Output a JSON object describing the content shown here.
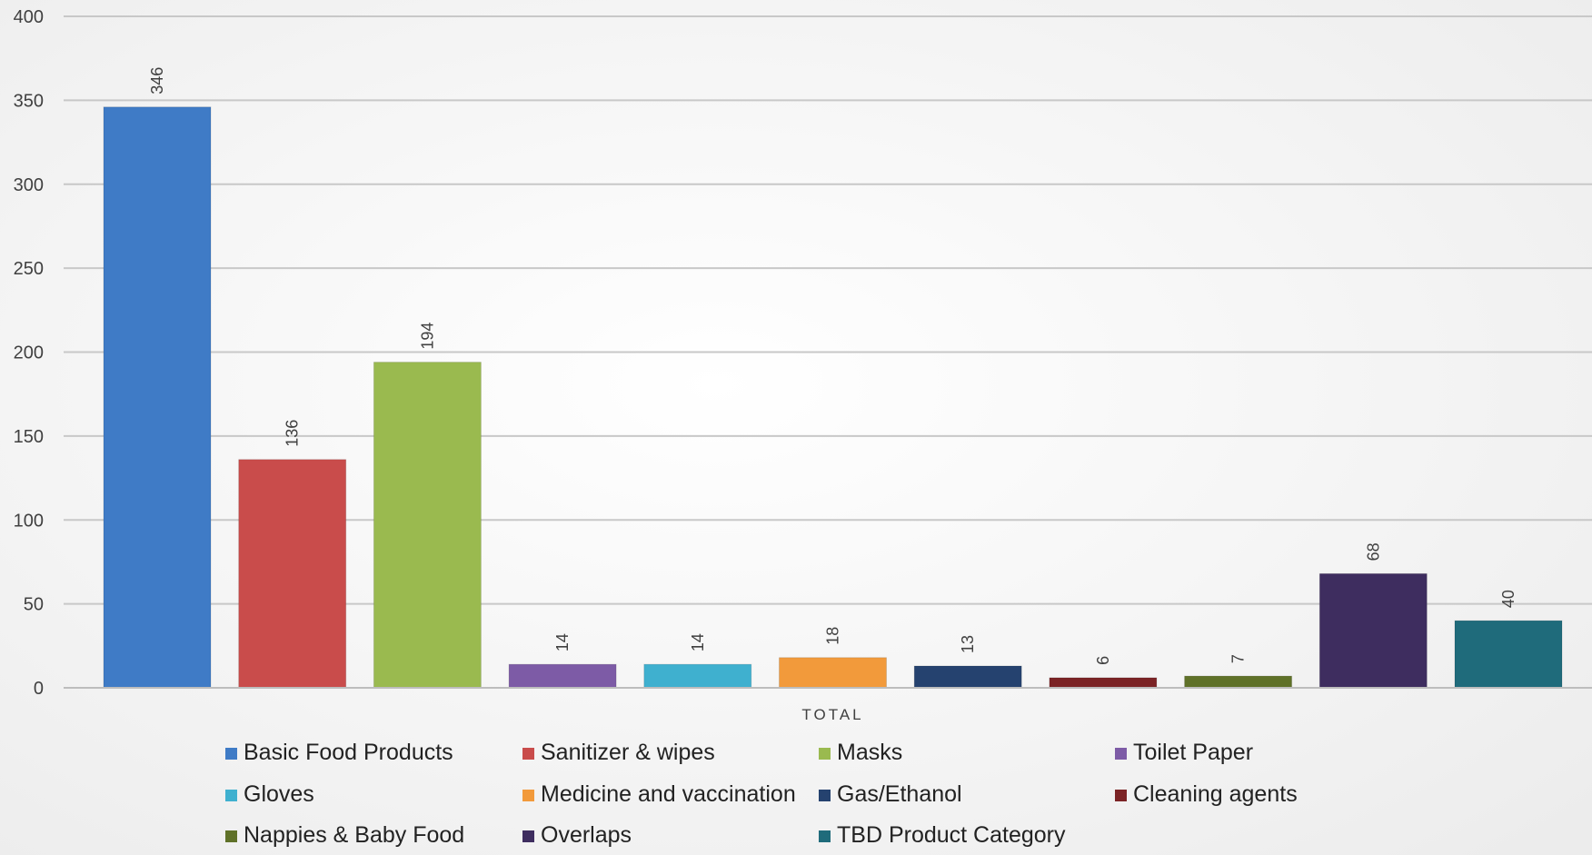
{
  "chart_data": {
    "type": "bar",
    "categories": [
      "TOTAL"
    ],
    "series": [
      {
        "name": "Basic Food Products",
        "values": [
          346
        ],
        "color": "#3f7bc6"
      },
      {
        "name": "Sanitizer & wipes",
        "values": [
          136
        ],
        "color": "#c94c4b"
      },
      {
        "name": "Masks",
        "values": [
          194
        ],
        "color": "#9aba4f"
      },
      {
        "name": "Toilet Paper",
        "values": [
          14
        ],
        "color": "#7d5ba6"
      },
      {
        "name": "Gloves",
        "values": [
          14
        ],
        "color": "#3fb0cf"
      },
      {
        "name": "Medicine and vaccination",
        "values": [
          18
        ],
        "color": "#f29a3b"
      },
      {
        "name": "Gas/Ethanol",
        "values": [
          13
        ],
        "color": "#25426f"
      },
      {
        "name": "Cleaning agents",
        "values": [
          6
        ],
        "color": "#7b2325"
      },
      {
        "name": "Nappies & Baby Food",
        "values": [
          7
        ],
        "color": "#5f7128"
      },
      {
        "name": "Overlaps",
        "values": [
          68
        ],
        "color": "#3e2d5f"
      },
      {
        "name": "TBD Product Category",
        "values": [
          40
        ],
        "color": "#1f6b7b"
      }
    ],
    "ylim": [
      0,
      400
    ],
    "yticks": [
      0,
      50,
      100,
      150,
      200,
      250,
      300,
      350,
      400
    ],
    "grid": true,
    "legend_position": "bottom",
    "title": "",
    "xlabel": "",
    "ylabel": ""
  }
}
